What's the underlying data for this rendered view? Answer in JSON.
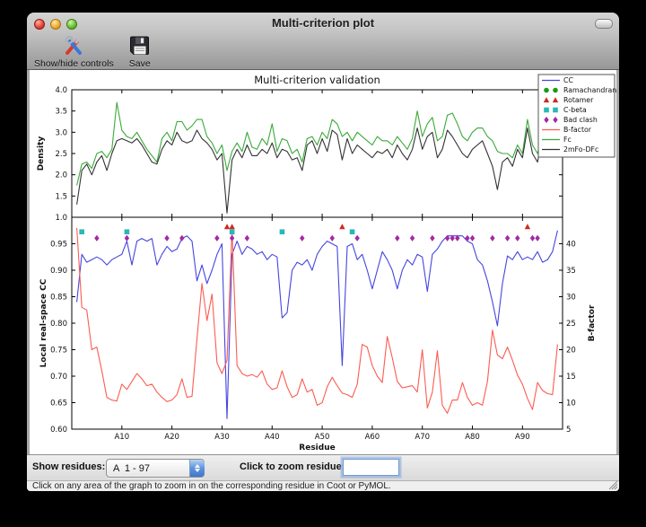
{
  "window": {
    "title": "Multi-criterion plot"
  },
  "toolbar": {
    "show_hide_label": "Show/hide controls",
    "save_label": "Save"
  },
  "controls": {
    "show_residues_label": "Show residues:",
    "chain_range_value": "A  1 - 97",
    "zoom_residue_label": "Click to zoom residue:",
    "zoom_residue_value": ""
  },
  "status_bar": {
    "text": "Click on any area of the graph to zoom in on the corresponding residue in Coot or PyMOL."
  },
  "chart_data": {
    "type": "line",
    "title": "Multi-criterion validation",
    "x": {
      "label": "Residue",
      "range": [
        0,
        98
      ],
      "tick_values": [
        10,
        20,
        30,
        40,
        50,
        60,
        70,
        80,
        90
      ],
      "tick_labels": [
        "A10",
        "A20",
        "A30",
        "A40",
        "A50",
        "A60",
        "A70",
        "A80",
        "A90"
      ]
    },
    "top_panel": {
      "ylabel": "Density",
      "ylim": [
        1.0,
        4.0
      ],
      "ytick_values": [
        4.0,
        3.5,
        3.0,
        2.5,
        2.0,
        1.5,
        1.0
      ],
      "ytick_labels": [
        "4.0",
        "3.5",
        "3.0",
        "2.5",
        "2.0",
        "1.5",
        "1.0"
      ],
      "series": [
        {
          "name": "Fc",
          "color": "#3aaa3a",
          "values": [
            1.75,
            2.25,
            2.3,
            2.15,
            2.5,
            2.55,
            2.4,
            2.6,
            3.7,
            3.05,
            2.9,
            2.85,
            3.0,
            2.8,
            2.6,
            2.45,
            2.3,
            2.85,
            3.0,
            2.8,
            3.25,
            3.25,
            3.05,
            3.15,
            3.3,
            3.3,
            2.9,
            2.75,
            2.5,
            2.7,
            2.1,
            2.55,
            2.75,
            2.55,
            3.0,
            2.65,
            2.6,
            2.85,
            2.7,
            3.2,
            2.55,
            2.85,
            2.8,
            2.5,
            2.6,
            2.3,
            2.85,
            2.9,
            2.7,
            3.0,
            2.85,
            3.3,
            3.2,
            2.9,
            3.0,
            2.8,
            3.0,
            2.9,
            2.8,
            2.7,
            2.9,
            2.8,
            2.8,
            2.7,
            2.9,
            2.75,
            2.6,
            2.85,
            3.5,
            2.9,
            3.2,
            3.35,
            2.8,
            2.9,
            3.4,
            3.45,
            3.2,
            2.9,
            2.8,
            3.0,
            3.1,
            3.1,
            2.9,
            2.8,
            2.55,
            2.5,
            2.5,
            2.4,
            2.7,
            2.5,
            3.3,
            2.7,
            2.5,
            3.0,
            2.9,
            2.6,
            3.6
          ]
        },
        {
          "name": "2mFo-DFc",
          "color": "#333333",
          "values": [
            1.3,
            2.1,
            2.25,
            2.0,
            2.3,
            2.45,
            2.1,
            2.5,
            2.8,
            2.85,
            2.8,
            2.75,
            2.85,
            2.7,
            2.5,
            2.3,
            2.25,
            2.6,
            2.8,
            2.7,
            3.0,
            2.8,
            2.75,
            2.8,
            3.05,
            2.85,
            2.75,
            2.6,
            2.35,
            2.5,
            1.1,
            2.35,
            2.6,
            2.4,
            2.7,
            2.45,
            2.45,
            2.6,
            2.5,
            2.75,
            2.4,
            2.6,
            2.55,
            2.35,
            2.4,
            2.1,
            2.7,
            2.8,
            2.5,
            2.85,
            2.55,
            3.05,
            2.95,
            2.35,
            2.85,
            2.5,
            2.7,
            2.6,
            2.5,
            2.4,
            2.55,
            2.5,
            2.6,
            2.4,
            2.7,
            2.5,
            2.35,
            2.6,
            3.1,
            2.6,
            2.9,
            3.0,
            2.4,
            2.6,
            3.05,
            2.9,
            2.7,
            2.5,
            2.4,
            2.6,
            2.7,
            2.8,
            2.5,
            2.2,
            1.65,
            2.3,
            2.4,
            2.2,
            2.6,
            2.4,
            3.1,
            2.5,
            2.3,
            2.9,
            2.7,
            2.5,
            3.1
          ]
        }
      ]
    },
    "bottom_panel": {
      "ylabel_left": "Local real-space CC",
      "ylim_left": [
        0.6,
        1.0
      ],
      "ytick_values_left": [
        0.95,
        0.9,
        0.85,
        0.8,
        0.75,
        0.7,
        0.65,
        0.6
      ],
      "ytick_labels_left": [
        "0.95",
        "0.90",
        "0.85",
        "0.80",
        "0.75",
        "0.70",
        "0.65",
        "0.60"
      ],
      "ylabel_right": "B-factor",
      "ylim_right": [
        5,
        45
      ],
      "ytick_values_right": [
        40,
        35,
        30,
        25,
        20,
        15,
        10,
        5
      ],
      "ytick_labels_right": [
        "40",
        "35",
        "30",
        "25",
        "20",
        "15",
        "10",
        "5"
      ],
      "series": [
        {
          "name": "CC",
          "axis": "left",
          "color": "#4545e0",
          "values": [
            0.84,
            0.93,
            0.915,
            0.92,
            0.925,
            0.92,
            0.91,
            0.92,
            0.925,
            0.93,
            0.955,
            0.91,
            0.955,
            0.96,
            0.955,
            0.96,
            0.91,
            0.93,
            0.945,
            0.935,
            0.94,
            0.96,
            0.965,
            0.955,
            0.88,
            0.91,
            0.875,
            0.9,
            0.93,
            0.95,
            0.62,
            0.93,
            0.955,
            0.93,
            0.945,
            0.94,
            0.93,
            0.935,
            0.92,
            0.93,
            0.925,
            0.81,
            0.82,
            0.9,
            0.915,
            0.91,
            0.92,
            0.9,
            0.93,
            0.945,
            0.955,
            0.95,
            0.945,
            0.72,
            0.945,
            0.95,
            0.92,
            0.93,
            0.9,
            0.865,
            0.9,
            0.935,
            0.92,
            0.9,
            0.865,
            0.9,
            0.92,
            0.91,
            0.93,
            0.925,
            0.86,
            0.93,
            0.94,
            0.955,
            0.965,
            0.965,
            0.965,
            0.965,
            0.955,
            0.95,
            0.92,
            0.91,
            0.88,
            0.84,
            0.795,
            0.875,
            0.927,
            0.92,
            0.935,
            0.92,
            0.925,
            0.92,
            0.935,
            0.915,
            0.92,
            0.935,
            0.975
          ]
        },
        {
          "name": "B-factor",
          "axis": "right",
          "color": "#fc5c52",
          "values": [
            43,
            28,
            27.5,
            20,
            20.5,
            16,
            11,
            10.5,
            10.3,
            13.5,
            12.5,
            14,
            15.5,
            14.5,
            13.2,
            13.5,
            12,
            11,
            10.2,
            10.5,
            11.5,
            14.5,
            11,
            11.2,
            22,
            32.5,
            25.5,
            30.5,
            17.5,
            15.5,
            18,
            42.5,
            17,
            15.5,
            15,
            15.3,
            14.8,
            16,
            13.5,
            12.5,
            12.8,
            16,
            13,
            11,
            11.5,
            14.5,
            12,
            12.5,
            9.5,
            10,
            13,
            14.8,
            13.2,
            11.8,
            11.5,
            11,
            13.5,
            21,
            20.5,
            17,
            15,
            13.8,
            22.5,
            18.5,
            14,
            12.8,
            13,
            13.2,
            12,
            20,
            9,
            12,
            19.8,
            9.5,
            8,
            10.5,
            10.5,
            13.8,
            11,
            9.5,
            10,
            9.5,
            14,
            23.7,
            19,
            18.3,
            20.5,
            18,
            15.2,
            13.5,
            10.8,
            8.7,
            13.8,
            12.3,
            11.7,
            11.5,
            21
          ]
        }
      ],
      "outlier_markers": [
        {
          "name": "Ramachandran",
          "shape": "circle",
          "color": "#1a9a1a",
          "row_y": 0.9835,
          "residues": []
        },
        {
          "name": "Rotamer",
          "shape": "triangle",
          "color": "#cc2b20",
          "row_y": 0.982,
          "residues": [
            31,
            32,
            54,
            91
          ]
        },
        {
          "name": "C-beta",
          "shape": "square",
          "color": "#29b8b8",
          "row_y": 0.9725,
          "residues": [
            2,
            11,
            32,
            42,
            56
          ]
        },
        {
          "name": "Bad clash",
          "shape": "diamond",
          "color": "#a429a4",
          "row_y": 0.9605,
          "residues": [
            5,
            11,
            19,
            22,
            29,
            32,
            35,
            46,
            52,
            57,
            65,
            68,
            72,
            75,
            76,
            77,
            79,
            80,
            84,
            87,
            89,
            92,
            93
          ]
        }
      ]
    },
    "legend": {
      "position": "upper right",
      "items": [
        {
          "label": "CC",
          "glyph": "line",
          "color": "#4545e0"
        },
        {
          "label": "Ramachandran",
          "glyph": "circle",
          "color": "#1a9a1a"
        },
        {
          "label": "Rotamer",
          "glyph": "triangle",
          "color": "#cc2b20"
        },
        {
          "label": "C-beta",
          "glyph": "square",
          "color": "#29b8b8"
        },
        {
          "label": "Bad clash",
          "glyph": "diamond",
          "color": "#a429a4"
        },
        {
          "label": "B-factor",
          "glyph": "line",
          "color": "#fc5c52"
        },
        {
          "label": "Fc",
          "glyph": "line",
          "color": "#3aaa3a"
        },
        {
          "label": "2mFo-DFc",
          "glyph": "line",
          "color": "#333333"
        }
      ]
    }
  }
}
